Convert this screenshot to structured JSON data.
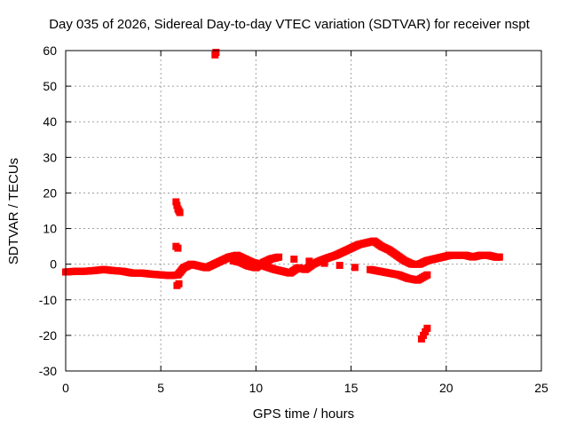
{
  "chart_data": {
    "type": "scatter",
    "title": "Day 035 of 2026, Sidereal Day-to-day VTEC variation (SDTVAR) for receiver nspt",
    "xlabel": "GPS time / hours",
    "ylabel": "SDTVAR / TECUs",
    "xlim": [
      0,
      25
    ],
    "ylim": [
      -30,
      60
    ],
    "xticks": [
      "0",
      "5",
      "10",
      "15",
      "20",
      "25"
    ],
    "yticks": [
      "-30",
      "-20",
      "-10",
      "0",
      "10",
      "20",
      "30",
      "40",
      "50",
      "60"
    ],
    "xtick_values": [
      0,
      5,
      10,
      15,
      20,
      25
    ],
    "ytick_values": [
      -30,
      -20,
      -10,
      0,
      10,
      20,
      30,
      40,
      50,
      60
    ],
    "grid": true,
    "marker_color": "#ff0000",
    "series": [
      {
        "name": "main",
        "x": [
          0.0,
          0.5,
          1.0,
          1.5,
          2.0,
          2.5,
          3.0,
          3.5,
          4.0,
          4.5,
          5.0,
          5.5,
          5.9,
          6.2,
          6.6,
          7.0,
          7.4,
          7.8,
          8.2,
          8.6,
          9.0,
          9.4,
          9.8,
          10.2,
          10.6,
          11.0,
          11.4,
          11.8,
          12.2,
          12.6,
          13.0,
          13.4,
          13.8,
          14.2,
          14.6,
          15.0,
          15.4,
          15.8,
          16.2,
          16.6,
          17.0,
          17.4,
          17.8,
          18.2,
          18.6,
          19.0,
          19.4,
          19.8,
          20.2,
          20.6,
          21.0,
          21.4,
          21.8,
          22.2,
          22.6,
          22.8
        ],
        "y": [
          -2.2,
          -2.0,
          -2.0,
          -1.8,
          -1.5,
          -1.8,
          -2.0,
          -2.5,
          -2.5,
          -2.8,
          -3.0,
          -3.2,
          -3.0,
          -1.0,
          0.0,
          -0.5,
          -1.0,
          0.0,
          1.0,
          2.0,
          2.5,
          1.5,
          0.5,
          0.0,
          -0.8,
          -1.5,
          -2.0,
          -2.5,
          -1.0,
          -1.5,
          0.0,
          1.0,
          1.8,
          2.5,
          3.5,
          4.5,
          5.5,
          6.0,
          6.5,
          5.0,
          4.0,
          2.5,
          1.0,
          0.0,
          0.0,
          1.0,
          1.5,
          2.0,
          2.5,
          2.5,
          2.5,
          2.0,
          2.5,
          2.5,
          2.0,
          2.0
        ]
      },
      {
        "name": "secondary",
        "x": [
          8.8,
          9.2,
          9.6,
          10.0,
          10.4,
          10.8,
          11.2,
          16.0,
          16.5,
          17.0,
          17.5,
          18.0,
          18.5,
          19.0
        ],
        "y": [
          1.0,
          0.5,
          -0.5,
          -1.0,
          0.5,
          1.5,
          2.0,
          -1.5,
          -2.0,
          -2.5,
          -3.0,
          -4.0,
          -4.5,
          -3.0
        ]
      },
      {
        "name": "outliers",
        "x": [
          5.8,
          5.85,
          5.9,
          5.95,
          6.0,
          5.8,
          5.9,
          5.85,
          5.95,
          7.85,
          7.9,
          18.7,
          18.8,
          18.9,
          19.0
        ],
        "y": [
          17.5,
          16.5,
          15.5,
          15.0,
          14.5,
          5.0,
          4.5,
          -6.0,
          -5.5,
          58.8,
          59.5,
          -21.0,
          -20.0,
          -19.0,
          -18.0
        ]
      }
    ]
  }
}
